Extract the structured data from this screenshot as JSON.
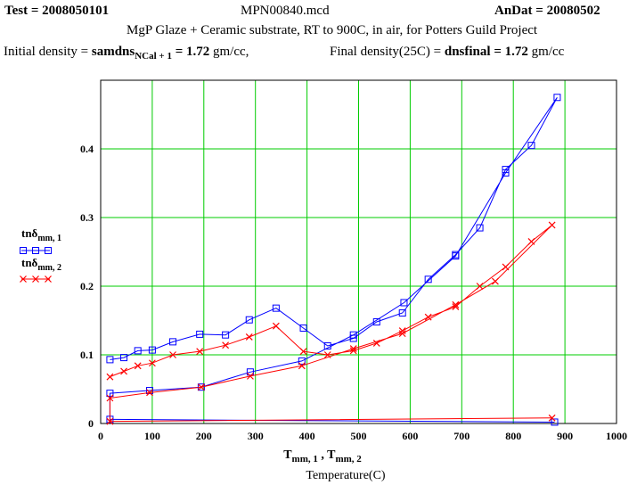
{
  "header": {
    "test_label": "Test = ",
    "test_value": "2008050101",
    "file": "MPN00840.mcd",
    "andat_label": "AnDat = ",
    "andat_value": "20080502",
    "description": "MgP Glaze + Ceramic substrate, RT to 900C, in  air, for Potters Guild Project",
    "initial_label": "Initial density = ",
    "initial_var": "samdns",
    "initial_sub": "NCal + 1",
    "initial_value": " = 1.72",
    "initial_unit": " gm/cc,",
    "final_label": "Final density(25C) = ",
    "final_var": "dnsfinal",
    "final_value": " = 1.72",
    "final_unit": " gm/cc"
  },
  "chart_data": {
    "type": "line",
    "xlim": [
      0,
      1000
    ],
    "ylim": [
      0,
      0.5
    ],
    "x_ticks": [
      "0",
      "100",
      "200",
      "300",
      "400",
      "500",
      "600",
      "700",
      "800",
      "900",
      "1000"
    ],
    "y_ticks": [
      "0",
      "0.1",
      "0.2",
      "0.3",
      "0.4"
    ],
    "grid": true,
    "grid_color": "#00cc00",
    "xlabel_var1": "T",
    "xlabel_sub1": "mm, 1",
    "xlabel_sep": " , ",
    "xlabel_var2": "T",
    "xlabel_sub2": "mm, 2",
    "xlabel_caption": "Temperature(C)",
    "legend_position": "left",
    "series": [
      {
        "name": "tnδ",
        "name_sub": "mm, 1",
        "color": "#0000ff",
        "marker": "square",
        "points": [
          [
            18,
            0.093
          ],
          [
            45,
            0.096
          ],
          [
            72,
            0.106
          ],
          [
            100,
            0.107
          ],
          [
            140,
            0.119
          ],
          [
            192,
            0.13
          ],
          [
            242,
            0.129
          ],
          [
            288,
            0.151
          ],
          [
            340,
            0.168
          ],
          [
            393,
            0.139
          ],
          [
            440,
            0.113
          ],
          [
            490,
            0.124
          ],
          [
            535,
            0.148
          ],
          [
            585,
            0.161
          ],
          [
            635,
            0.21
          ],
          [
            688,
            0.246
          ],
          [
            735,
            0.285
          ],
          [
            785,
            0.37
          ],
          [
            835,
            0.405
          ],
          [
            885,
            0.475
          ],
          [
            785,
            0.365
          ],
          [
            688,
            0.244
          ],
          [
            588,
            0.176
          ],
          [
            490,
            0.129
          ],
          [
            390,
            0.091
          ],
          [
            290,
            0.075
          ],
          [
            195,
            0.053
          ],
          [
            95,
            0.048
          ],
          [
            18,
            0.044
          ],
          [
            18,
            0.006
          ],
          [
            880,
            0.002
          ]
        ]
      },
      {
        "name": "tnδ",
        "name_sub": "mm, 2",
        "color": "#ff0000",
        "marker": "x",
        "points": [
          [
            18,
            0.068
          ],
          [
            45,
            0.076
          ],
          [
            72,
            0.084
          ],
          [
            100,
            0.088
          ],
          [
            140,
            0.1
          ],
          [
            192,
            0.105
          ],
          [
            242,
            0.114
          ],
          [
            288,
            0.126
          ],
          [
            340,
            0.142
          ],
          [
            393,
            0.105
          ],
          [
            440,
            0.1
          ],
          [
            490,
            0.106
          ],
          [
            535,
            0.117
          ],
          [
            585,
            0.135
          ],
          [
            635,
            0.155
          ],
          [
            688,
            0.17
          ],
          [
            735,
            0.2
          ],
          [
            785,
            0.228
          ],
          [
            835,
            0.265
          ],
          [
            875,
            0.289
          ],
          [
            765,
            0.207
          ],
          [
            688,
            0.173
          ],
          [
            585,
            0.131
          ],
          [
            490,
            0.109
          ],
          [
            390,
            0.084
          ],
          [
            290,
            0.069
          ],
          [
            195,
            0.053
          ],
          [
            95,
            0.045
          ],
          [
            18,
            0.037
          ],
          [
            18,
            0.003
          ],
          [
            875,
            0.008
          ]
        ]
      }
    ]
  }
}
